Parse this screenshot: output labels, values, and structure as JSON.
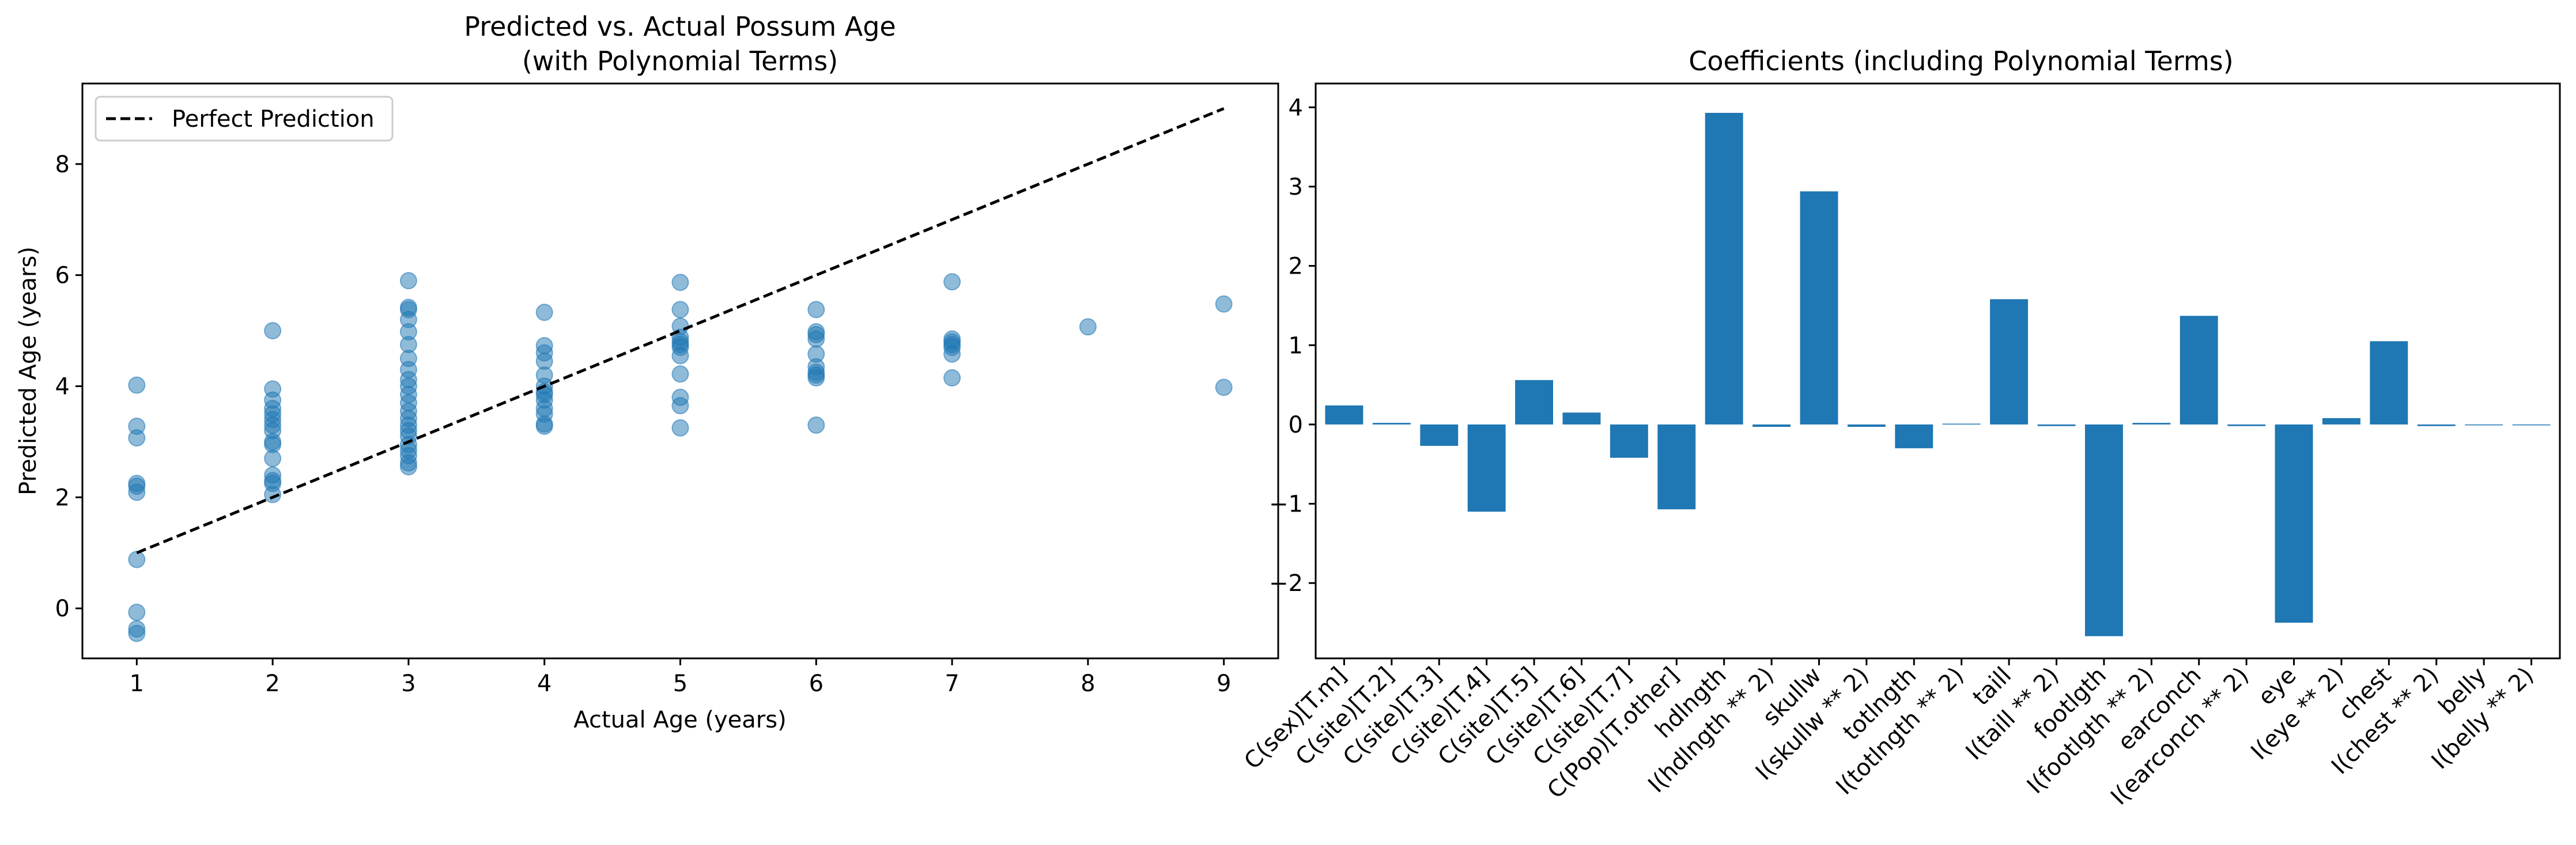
{
  "chart_data": [
    {
      "type": "scatter",
      "title": "Predicted vs. Actual Possum Age",
      "subtitle": "(with Polynomial Terms)",
      "xlabel": "Actual Age (years)",
      "ylabel": "Predicted Age (years)",
      "xlim": [
        0.6,
        9.4
      ],
      "ylim": [
        -0.9,
        9.45
      ],
      "xticks": [
        "1",
        "2",
        "3",
        "4",
        "5",
        "6",
        "7",
        "8",
        "9"
      ],
      "yticks": [
        "0",
        "2",
        "4",
        "6",
        "8"
      ],
      "legend": {
        "position": "top-left",
        "entries": [
          "Perfect Prediction"
        ]
      },
      "grid": false,
      "point_color": "#1f77b4",
      "line_color": "#000000",
      "reference_line": {
        "name": "Perfect Prediction",
        "x": [
          1,
          9
        ],
        "y": [
          1,
          9
        ]
      },
      "points": [
        [
          1,
          4.02
        ],
        [
          1,
          3.28
        ],
        [
          1,
          3.07
        ],
        [
          1,
          2.25
        ],
        [
          1,
          2.2
        ],
        [
          1,
          2.09
        ],
        [
          1,
          0.88
        ],
        [
          1,
          -0.07
        ],
        [
          1,
          -0.37
        ],
        [
          1,
          -0.45
        ],
        [
          2,
          5.0
        ],
        [
          2,
          3.95
        ],
        [
          2,
          3.75
        ],
        [
          2,
          3.6
        ],
        [
          2,
          3.5
        ],
        [
          2,
          3.4
        ],
        [
          2,
          3.3
        ],
        [
          2,
          3.2
        ],
        [
          2,
          3.0
        ],
        [
          2,
          2.95
        ],
        [
          2,
          2.7
        ],
        [
          2,
          2.4
        ],
        [
          2,
          2.3
        ],
        [
          2,
          2.25
        ],
        [
          2,
          2.05
        ],
        [
          3,
          5.9
        ],
        [
          3,
          5.42
        ],
        [
          3,
          5.38
        ],
        [
          3,
          5.2
        ],
        [
          3,
          4.98
        ],
        [
          3,
          4.75
        ],
        [
          3,
          4.5
        ],
        [
          3,
          4.3
        ],
        [
          3,
          4.12
        ],
        [
          3,
          4.0
        ],
        [
          3,
          3.85
        ],
        [
          3,
          3.7
        ],
        [
          3,
          3.55
        ],
        [
          3,
          3.42
        ],
        [
          3,
          3.3
        ],
        [
          3,
          3.2
        ],
        [
          3,
          3.1
        ],
        [
          3,
          2.95
        ],
        [
          3,
          2.85
        ],
        [
          3,
          2.75
        ],
        [
          3,
          2.62
        ],
        [
          3,
          2.55
        ],
        [
          4,
          5.33
        ],
        [
          4,
          4.73
        ],
        [
          4,
          4.6
        ],
        [
          4,
          4.45
        ],
        [
          4,
          4.2
        ],
        [
          4,
          4.0
        ],
        [
          4,
          3.9
        ],
        [
          4,
          3.85
        ],
        [
          4,
          3.75
        ],
        [
          4,
          3.6
        ],
        [
          4,
          3.5
        ],
        [
          4,
          3.32
        ],
        [
          4,
          3.28
        ],
        [
          5,
          5.87
        ],
        [
          5,
          5.38
        ],
        [
          5,
          5.08
        ],
        [
          5,
          4.88
        ],
        [
          5,
          4.8
        ],
        [
          5,
          4.75
        ],
        [
          5,
          4.7
        ],
        [
          5,
          4.55
        ],
        [
          5,
          4.22
        ],
        [
          5,
          3.8
        ],
        [
          5,
          3.65
        ],
        [
          5,
          3.25
        ],
        [
          6,
          5.38
        ],
        [
          6,
          4.98
        ],
        [
          6,
          4.93
        ],
        [
          6,
          4.85
        ],
        [
          6,
          4.58
        ],
        [
          6,
          4.35
        ],
        [
          6,
          4.25
        ],
        [
          6,
          4.2
        ],
        [
          6,
          4.15
        ],
        [
          6,
          3.3
        ],
        [
          7,
          5.88
        ],
        [
          7,
          4.85
        ],
        [
          7,
          4.8
        ],
        [
          7,
          4.75
        ],
        [
          7,
          4.7
        ],
        [
          7,
          4.58
        ],
        [
          7,
          4.15
        ],
        [
          8,
          5.07
        ],
        [
          9,
          5.48
        ],
        [
          9,
          3.98
        ]
      ]
    },
    {
      "type": "bar",
      "title": "Coefficients (including Polynomial Terms)",
      "xlabel": "",
      "ylabel": "",
      "ylim": [
        -2.95,
        4.3
      ],
      "yticks": [
        "−2",
        "−1",
        "0",
        "1",
        "2",
        "3",
        "4"
      ],
      "grid": false,
      "bar_color": "#1f77b4",
      "categories": [
        "C(sex)[T.m]",
        "C(site)[T.2]",
        "C(site)[T.3]",
        "C(site)[T.4]",
        "C(site)[T.5]",
        "C(site)[T.6]",
        "C(site)[T.7]",
        "C(Pop)[T.other]",
        "hdlngth",
        "I(hdlngth ** 2)",
        "skullw",
        "I(skullw ** 2)",
        "totlngth",
        "I(totlngth ** 2)",
        "taill",
        "I(taill ** 2)",
        "footlgth",
        "I(footlgth ** 2)",
        "earconch",
        "I(earconch ** 2)",
        "eye",
        "I(eye ** 2)",
        "chest",
        "I(chest ** 2)",
        "belly",
        "I(belly ** 2)"
      ],
      "values": [
        0.24,
        0.02,
        -0.27,
        -1.1,
        0.56,
        0.15,
        -0.42,
        -1.07,
        3.93,
        -0.03,
        2.94,
        -0.03,
        -0.3,
        0.01,
        1.58,
        -0.02,
        -2.67,
        0.02,
        1.37,
        -0.02,
        -2.5,
        0.08,
        1.05,
        -0.02,
        -0.01,
        -0.01
      ]
    }
  ]
}
